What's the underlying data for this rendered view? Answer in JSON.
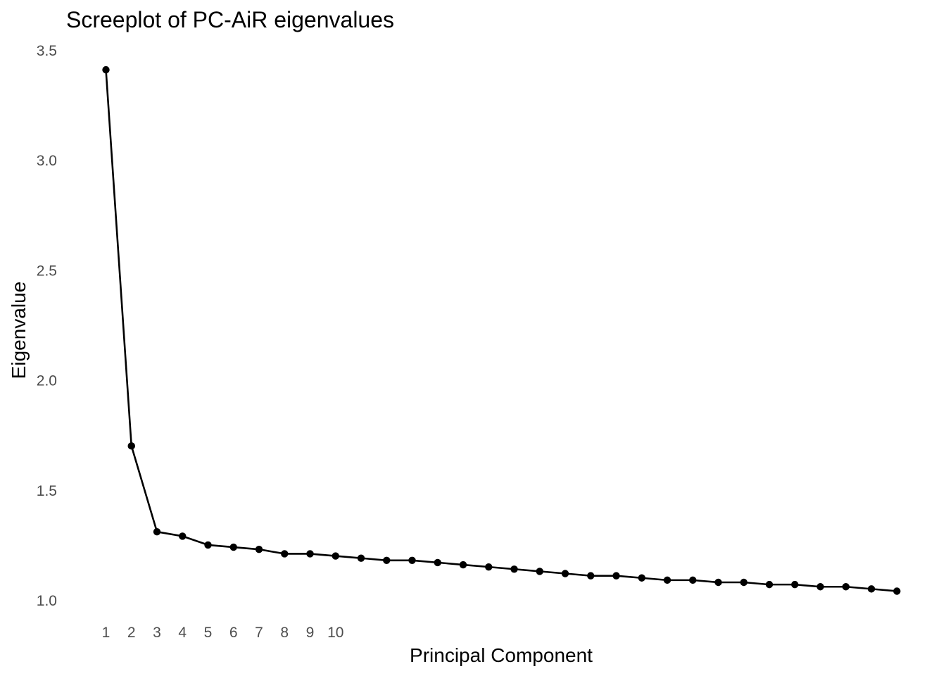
{
  "chart_data": {
    "type": "line",
    "title": "Screeplot of PC-AiR eigenvalues",
    "xlabel": "Principal Component",
    "ylabel": "Eigenvalue",
    "x_ticks": [
      1,
      2,
      3,
      4,
      5,
      6,
      7,
      8,
      9,
      10
    ],
    "x_range": [
      1,
      32
    ],
    "ylim": [
      1.0,
      3.5
    ],
    "y_ticks": [
      "1.0",
      "1.5",
      "2.0",
      "2.5",
      "3.0",
      "3.5"
    ],
    "grid": false,
    "legend": "none",
    "series": [
      {
        "color": "#000000",
        "marker": "circle",
        "x": [
          1,
          2,
          3,
          4,
          5,
          6,
          7,
          8,
          9,
          10,
          11,
          12,
          13,
          14,
          15,
          16,
          17,
          18,
          19,
          20,
          21,
          22,
          23,
          24,
          25,
          26,
          27,
          28,
          29,
          30,
          31,
          32
        ],
        "values": [
          3.41,
          1.7,
          1.31,
          1.29,
          1.25,
          1.24,
          1.23,
          1.21,
          1.21,
          1.2,
          1.19,
          1.18,
          1.18,
          1.17,
          1.16,
          1.15,
          1.14,
          1.13,
          1.12,
          1.11,
          1.11,
          1.1,
          1.09,
          1.09,
          1.08,
          1.08,
          1.07,
          1.07,
          1.06,
          1.06,
          1.05,
          1.04
        ]
      }
    ]
  }
}
